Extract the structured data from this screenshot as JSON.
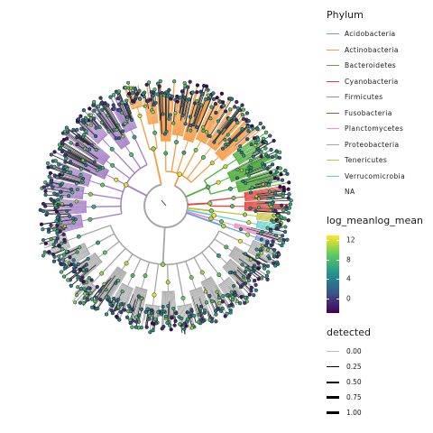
{
  "chart_data": {
    "type": "circular phylogenetic tree",
    "legend_phylum": {
      "title": "Phylum",
      "entries": [
        {
          "label": "Acidobacteria",
          "color": "#6a9fd5"
        },
        {
          "label": "Actinobacteria",
          "color": "#f59b45"
        },
        {
          "label": "Bacteroidetes",
          "color": "#4daf3a"
        },
        {
          "label": "Cyanobacteria",
          "color": "#e6403a"
        },
        {
          "label": "Firmicutes",
          "color": "#a47ec6"
        },
        {
          "label": "Fusobacteria",
          "color": "#9a5b4a"
        },
        {
          "label": "Planctomycetes",
          "color": "#ee8cc8"
        },
        {
          "label": "Proteobacteria",
          "color": "#a6a6a6"
        },
        {
          "label": "Tenericutes",
          "color": "#c5c23e"
        },
        {
          "label": "Verrucomicrobia",
          "color": "#5ccfd0"
        },
        {
          "label": "NA",
          "color": ""
        }
      ]
    },
    "legend_mean": {
      "title": "log_meanlog_mean",
      "ticks": [
        "12",
        "8",
        "4",
        "0"
      ],
      "tick_values": [
        12,
        8,
        4,
        0
      ],
      "range": [
        -3,
        13
      ],
      "colormap": "viridis"
    },
    "legend_detected": {
      "title": "detected",
      "ticks": [
        "0.00",
        "0.25",
        "0.50",
        "0.75",
        "1.00"
      ],
      "values": [
        0.0,
        0.25,
        0.5,
        0.75,
        1.0
      ]
    },
    "clades": [
      {
        "phylum": "Actinobacteria",
        "start_deg": -5,
        "end_deg": 52
      },
      {
        "phylum": "Bacteroidetes",
        "start_deg": 52,
        "end_deg": 80
      },
      {
        "phylum": "Cyanobacteria",
        "start_deg": 80,
        "end_deg": 94
      },
      {
        "phylum": "Tenericutes",
        "start_deg": 94,
        "end_deg": 99
      },
      {
        "phylum": "Verrucomicrobia",
        "start_deg": 99,
        "end_deg": 104
      },
      {
        "phylum": "Planctomycetes",
        "start_deg": 104,
        "end_deg": 108
      },
      {
        "phylum": "Acidobacteria",
        "start_deg": 108,
        "end_deg": 111
      },
      {
        "phylum": "Proteobacteria",
        "start_deg": 111,
        "end_deg": 255
      },
      {
        "phylum": "Firmicutes",
        "start_deg": 255,
        "end_deg": 340
      },
      {
        "phylum": "Actinobacteria",
        "start_deg": 340,
        "end_deg": 355
      }
    ]
  }
}
